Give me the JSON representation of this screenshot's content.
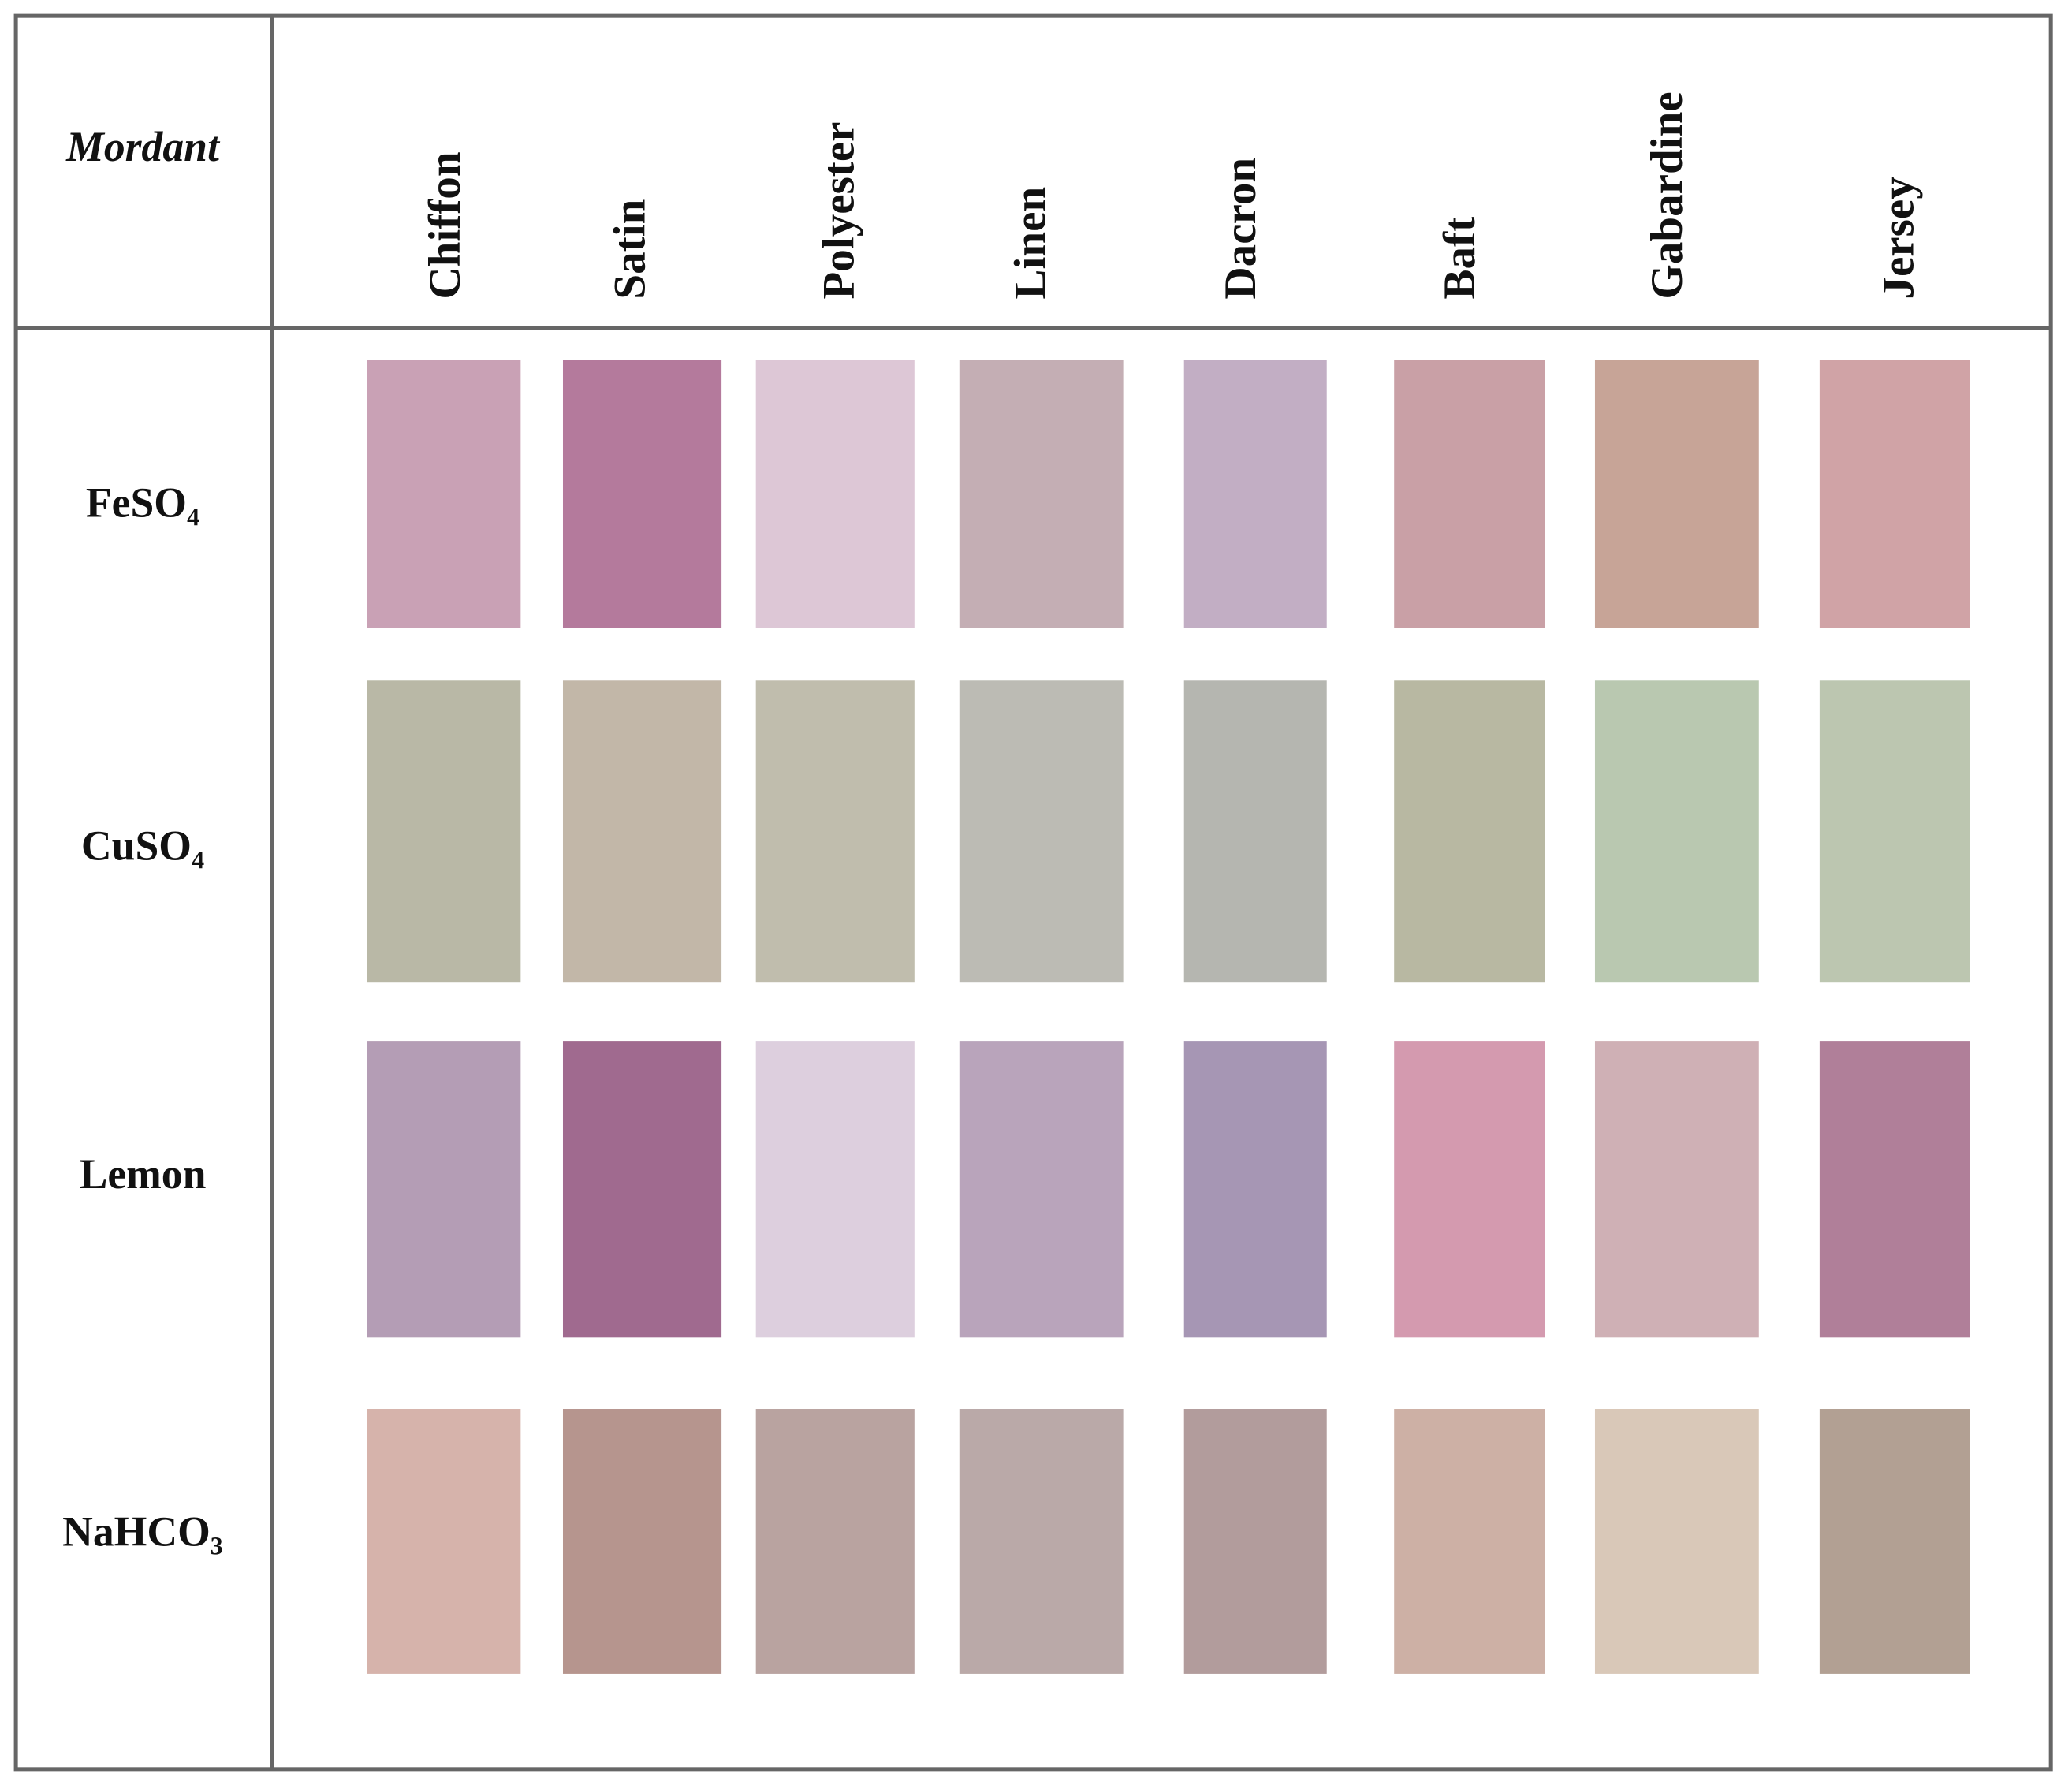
{
  "table": {
    "corner": "Mordant",
    "columns": [
      "Chiffon",
      "Satin",
      "Polyester",
      "Linen",
      "Dacron",
      "Baft",
      "Gabardine",
      "Jersey"
    ],
    "rows": [
      {
        "label": "FeSO₄",
        "colors": [
          "#c9a1b5",
          "#b47a9c",
          "#ddc7d6",
          "#c4aeb4",
          "#c2aec4",
          "#c9a0a6",
          "#c7a497",
          "#d0a3a6"
        ]
      },
      {
        "label": "CuSO₄",
        "colors": [
          "#b9b8a6",
          "#c2b7a8",
          "#c0bdad",
          "#bcbbb4",
          "#b5b6b0",
          "#b8b8a2",
          "#b9c8b0",
          "#bcc6b0"
        ]
      },
      {
        "label": "Lemon",
        "colors": [
          "#b49db5",
          "#a06a8f",
          "#ddcfde",
          "#b9a4bb",
          "#a696b4",
          "#d49aaf",
          "#cfb0b5",
          "#b07f99"
        ]
      },
      {
        "label": "NaHCO₃",
        "colors": [
          "#d6b3ab",
          "#b6958e",
          "#b9a3a0",
          "#baa9a8",
          "#b29c9c",
          "#cdb0a5",
          "#d9c8b8",
          "#b2a093"
        ]
      }
    ]
  }
}
